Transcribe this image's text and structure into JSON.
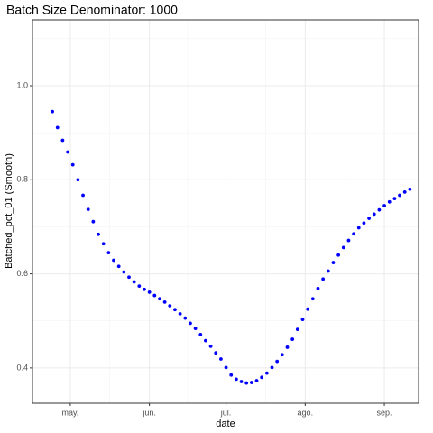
{
  "chart_data": {
    "type": "scatter",
    "title": "Batch Size Denominator: 1000",
    "xlabel": "date",
    "ylabel": "Batched_pct_01 (Smooth)",
    "series": [
      {
        "color": "#0000ff",
        "x": [
          114,
          116,
          118,
          120,
          122,
          124,
          126,
          128,
          130,
          132,
          134,
          136,
          138,
          140,
          142,
          144,
          146,
          148,
          150,
          152,
          154,
          156,
          158,
          160,
          162,
          164,
          166,
          168,
          170,
          172,
          174,
          176,
          178,
          180,
          182,
          184,
          186,
          188,
          190,
          192,
          194,
          196,
          198,
          200,
          202,
          204,
          206,
          208,
          210,
          212,
          214,
          216,
          218,
          220,
          222,
          224,
          226,
          228,
          230,
          232,
          234,
          236,
          238,
          240,
          242,
          244,
          246,
          248,
          250,
          252,
          254
        ],
        "values": [
          0.945,
          0.911,
          0.884,
          0.859,
          0.832,
          0.8,
          0.767,
          0.737,
          0.711,
          0.684,
          0.664,
          0.645,
          0.629,
          0.616,
          0.604,
          0.593,
          0.583,
          0.574,
          0.567,
          0.561,
          0.554,
          0.547,
          0.54,
          0.532,
          0.524,
          0.515,
          0.506,
          0.495,
          0.484,
          0.471,
          0.458,
          0.446,
          0.432,
          0.419,
          0.401,
          0.385,
          0.376,
          0.371,
          0.368,
          0.369,
          0.373,
          0.38,
          0.389,
          0.401,
          0.414,
          0.428,
          0.444,
          0.461,
          0.482,
          0.503,
          0.525,
          0.547,
          0.569,
          0.589,
          0.606,
          0.624,
          0.64,
          0.656,
          0.671,
          0.685,
          0.698,
          0.708,
          0.718,
          0.727,
          0.736,
          0.745,
          0.753,
          0.76,
          0.767,
          0.774,
          0.78
        ]
      }
    ],
    "xlim": [
      106.2,
      257.4
    ],
    "xticks": [
      {
        "value": 121,
        "label": "may."
      },
      {
        "value": 152,
        "label": "jun."
      },
      {
        "value": 182,
        "label": "jul."
      },
      {
        "value": 213,
        "label": "ago."
      },
      {
        "value": 244,
        "label": "sep."
      }
    ],
    "ylim": [
      0.325,
      1.14
    ],
    "yticks": [
      0.4,
      0.6,
      0.8,
      {
        "value": 1,
        "label": "1.0"
      }
    ],
    "grid": true,
    "minor_grid": true
  }
}
